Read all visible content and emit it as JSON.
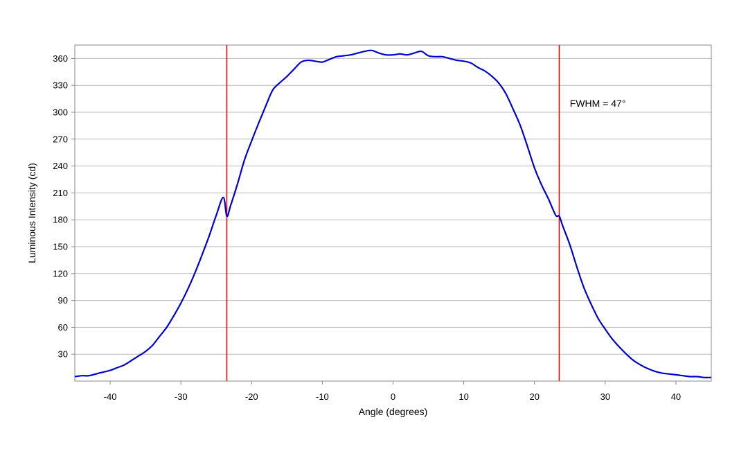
{
  "chart_data": {
    "type": "line",
    "xlabel": "Angle (degrees)",
    "ylabel": "Luminous Intensity (cd)",
    "xlim": [
      -45,
      45
    ],
    "ylim": [
      0,
      375
    ],
    "x_ticks": [
      -40,
      -30,
      -20,
      -10,
      0,
      10,
      20,
      30,
      40
    ],
    "y_ticks": [
      30,
      60,
      90,
      120,
      150,
      180,
      210,
      240,
      270,
      300,
      330,
      360
    ],
    "grid": "horizontal",
    "series": [
      {
        "color": "#0000cc",
        "x": [
          -45,
          -44,
          -43,
          -42,
          -41,
          -40,
          -39,
          -38,
          -37,
          -36,
          -35,
          -34,
          -33,
          -32,
          -31,
          -30,
          -29,
          -28,
          -27,
          -26,
          -25,
          -24,
          -23.5,
          -23,
          -22,
          -21,
          -20,
          -19,
          -18,
          -17,
          -16,
          -15,
          -14,
          -13,
          -12,
          -11,
          -10,
          -9,
          -8,
          -7,
          -6,
          -5,
          -4,
          -3,
          -2,
          -1,
          0,
          1,
          2,
          3,
          4,
          5,
          6,
          7,
          8,
          9,
          10,
          11,
          12,
          13,
          14,
          15,
          16,
          17,
          18,
          19,
          20,
          21,
          22,
          23,
          23.5,
          24,
          25,
          26,
          27,
          28,
          29,
          30,
          31,
          32,
          33,
          34,
          35,
          36,
          37,
          38,
          39,
          40,
          41,
          42,
          43,
          44,
          45
        ],
        "y": [
          5,
          6,
          6,
          8,
          10,
          12,
          15,
          18,
          23,
          28,
          33,
          40,
          50,
          60,
          73,
          87,
          103,
          121,
          141,
          162,
          185,
          205,
          184,
          195,
          220,
          247,
          268,
          288,
          307,
          325,
          333,
          340,
          348,
          356,
          358,
          357,
          356,
          359,
          362,
          363,
          364,
          366,
          368,
          369,
          366,
          364,
          364,
          365,
          364,
          366,
          368,
          363,
          362,
          362,
          360,
          358,
          357,
          355,
          350,
          346,
          340,
          332,
          320,
          303,
          285,
          262,
          238,
          219,
          203,
          185,
          184,
          173,
          152,
          127,
          104,
          86,
          70,
          58,
          47,
          38,
          30,
          23,
          18,
          14,
          11,
          9,
          8,
          7,
          6,
          5,
          5,
          4,
          4
        ]
      }
    ],
    "vlines": [
      {
        "x": -23.5,
        "color": "#dd0000"
      },
      {
        "x": 23.5,
        "color": "#dd0000"
      }
    ],
    "annotations": [
      {
        "text": "FWHM = 47°",
        "x": 25,
        "y": 310
      }
    ]
  }
}
